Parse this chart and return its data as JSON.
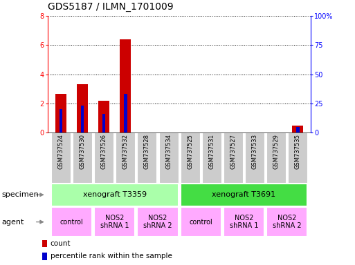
{
  "title": "GDS5187 / ILMN_1701009",
  "samples": [
    "GSM737524",
    "GSM737530",
    "GSM737526",
    "GSM737532",
    "GSM737528",
    "GSM737534",
    "GSM737525",
    "GSM737531",
    "GSM737527",
    "GSM737533",
    "GSM737529",
    "GSM737535"
  ],
  "counts": [
    2.65,
    3.3,
    2.2,
    6.4,
    0,
    0,
    0,
    0,
    0,
    0,
    0,
    0.45
  ],
  "percentile": [
    20,
    23,
    16,
    33,
    0,
    0,
    0,
    0,
    0,
    0,
    0,
    5
  ],
  "ylim_left": [
    0,
    8
  ],
  "ylim_right": [
    0,
    100
  ],
  "yticks_left": [
    0,
    2,
    4,
    6,
    8
  ],
  "yticks_right": [
    0,
    25,
    50,
    75,
    100
  ],
  "ytick_labels_right": [
    "0",
    "25",
    "50",
    "75",
    "100%"
  ],
  "bar_color_count": "#cc0000",
  "bar_color_pct": "#0000cc",
  "specimen_row": [
    {
      "label": "xenograft T3359",
      "span": [
        0,
        5
      ],
      "color": "#aaffaa"
    },
    {
      "label": "xenograft T3691",
      "span": [
        6,
        11
      ],
      "color": "#44dd44"
    }
  ],
  "agent_row": [
    {
      "label": "control",
      "span": [
        0,
        1
      ],
      "color": "#ffaaff"
    },
    {
      "label": "NOS2\nshRNA 1",
      "span": [
        2,
        3
      ],
      "color": "#ffaaff"
    },
    {
      "label": "NOS2\nshRNA 2",
      "span": [
        4,
        5
      ],
      "color": "#ffaaff"
    },
    {
      "label": "control",
      "span": [
        6,
        7
      ],
      "color": "#ffaaff"
    },
    {
      "label": "NOS2\nshRNA 1",
      "span": [
        8,
        9
      ],
      "color": "#ffaaff"
    },
    {
      "label": "NOS2\nshRNA 2",
      "span": [
        10,
        11
      ],
      "color": "#ffaaff"
    }
  ],
  "title_fontsize": 10,
  "tick_label_fontsize": 6,
  "axis_fontsize": 7,
  "row_fontsize": 8,
  "agent_fontsize": 7,
  "legend_fontsize": 7.5
}
